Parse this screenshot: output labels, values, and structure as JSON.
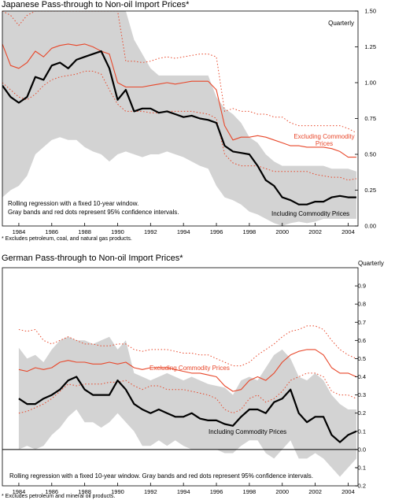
{
  "chart_data": [
    {
      "type": "line",
      "title": "Japanese Pass-through to Non-oil Import Prices*",
      "footnote": "* Excludes petroleum, coal, and natural gas products.",
      "frequency_label": "Quarterly",
      "note_lines": [
        "Rolling regression with a fixed 10-year window.",
        "Gray bands and red dots represent 95% confidence intervals."
      ],
      "xlim": [
        1983,
        2004.6
      ],
      "x_ticks": [
        1984,
        1986,
        1988,
        1990,
        1992,
        1994,
        1996,
        1998,
        2000,
        2002,
        2004
      ],
      "ylim": [
        0,
        1.5
      ],
      "y_ticks": [
        "0.00",
        "0.25",
        "0.50",
        "0.75",
        "1.00",
        "1.25",
        "1.50"
      ],
      "bands": {
        "x": [
          1983.0,
          1983.5,
          1984.0,
          1984.5,
          1985.0,
          1985.5,
          1986.0,
          1986.5,
          1987.0,
          1987.5,
          1988.0,
          1988.5,
          1989.0,
          1989.5,
          1990.0,
          1990.5,
          1991.0,
          1991.5,
          1992.0,
          1992.5,
          1993.0,
          1993.5,
          1994.0,
          1994.5,
          1995.0,
          1995.5,
          1996.0,
          1996.5,
          1997.0,
          1997.5,
          1998.0,
          1998.5,
          1999.0,
          1999.5,
          2000.0,
          2000.5,
          2001.0,
          2001.5,
          2002.0,
          2002.5,
          2003.0,
          2003.5,
          2004.0,
          2004.5
        ],
        "lower": [
          0.2,
          0.25,
          0.28,
          0.35,
          0.5,
          0.55,
          0.6,
          0.62,
          0.6,
          0.6,
          0.55,
          0.52,
          0.5,
          0.45,
          0.5,
          0.52,
          0.5,
          0.48,
          0.5,
          0.5,
          0.52,
          0.5,
          0.48,
          0.45,
          0.42,
          0.4,
          0.28,
          0.2,
          0.18,
          0.15,
          0.1,
          0.08,
          0.05,
          0.02,
          0.0,
          0.02,
          0.03,
          0.02,
          0.03,
          0.05,
          0.05,
          0.05,
          0.05,
          0.05
        ],
        "upper": [
          1.5,
          1.5,
          1.5,
          1.5,
          1.5,
          1.5,
          1.5,
          1.5,
          1.5,
          1.5,
          1.5,
          1.5,
          1.5,
          1.5,
          1.5,
          1.5,
          1.3,
          1.2,
          1.1,
          1.05,
          1.05,
          1.05,
          1.05,
          1.05,
          1.05,
          1.05,
          0.9,
          0.82,
          0.78,
          0.72,
          0.62,
          0.58,
          0.5,
          0.45,
          0.42,
          0.42,
          0.42,
          0.42,
          0.42,
          0.42,
          0.4,
          0.4,
          0.4,
          0.38
        ]
      },
      "series": [
        {
          "name": "Excluding Commodity Prices",
          "color": "#e8472a",
          "x": [
            1983.0,
            1983.5,
            1984.0,
            1984.5,
            1985.0,
            1985.5,
            1986.0,
            1986.5,
            1987.0,
            1987.5,
            1988.0,
            1988.5,
            1989.0,
            1989.5,
            1990.0,
            1990.5,
            1991.0,
            1991.5,
            1992.0,
            1992.5,
            1993.0,
            1993.5,
            1994.0,
            1994.5,
            1995.0,
            1995.5,
            1996.0,
            1996.5,
            1997.0,
            1997.5,
            1998.0,
            1998.5,
            1999.0,
            1999.5,
            2000.0,
            2000.5,
            2001.0,
            2001.5,
            2002.0,
            2002.5,
            2003.0,
            2003.5,
            2004.0,
            2004.5
          ],
          "y": [
            1.27,
            1.12,
            1.1,
            1.14,
            1.22,
            1.18,
            1.24,
            1.26,
            1.27,
            1.26,
            1.27,
            1.25,
            1.22,
            1.2,
            1.0,
            0.97,
            0.97,
            0.97,
            0.98,
            0.99,
            1.0,
            0.99,
            1.0,
            1.01,
            1.01,
            1.01,
            0.95,
            0.7,
            0.6,
            0.62,
            0.62,
            0.63,
            0.62,
            0.6,
            0.58,
            0.56,
            0.56,
            0.55,
            0.55,
            0.55,
            0.54,
            0.52,
            0.48,
            0.48
          ]
        },
        {
          "name": "Including Commodity Prices",
          "color": "#000000",
          "x": [
            1983.0,
            1983.5,
            1984.0,
            1984.5,
            1985.0,
            1985.5,
            1986.0,
            1986.5,
            1987.0,
            1987.5,
            1988.0,
            1988.5,
            1989.0,
            1989.5,
            1990.0,
            1990.5,
            1991.0,
            1991.5,
            1992.0,
            1992.5,
            1993.0,
            1993.5,
            1994.0,
            1994.5,
            1995.0,
            1995.5,
            1996.0,
            1996.5,
            1997.0,
            1997.5,
            1998.0,
            1998.5,
            1999.0,
            1999.5,
            2000.0,
            2000.5,
            2001.0,
            2001.5,
            2002.0,
            2002.5,
            2003.0,
            2003.5,
            2004.0,
            2004.5
          ],
          "y": [
            0.98,
            0.9,
            0.86,
            0.9,
            1.04,
            1.02,
            1.12,
            1.14,
            1.1,
            1.16,
            1.18,
            1.2,
            1.22,
            1.1,
            0.88,
            0.95,
            0.8,
            0.82,
            0.82,
            0.79,
            0.8,
            0.78,
            0.76,
            0.77,
            0.75,
            0.74,
            0.72,
            0.56,
            0.52,
            0.51,
            0.5,
            0.42,
            0.32,
            0.28,
            0.2,
            0.18,
            0.15,
            0.15,
            0.17,
            0.17,
            0.2,
            0.21,
            0.2,
            0.2
          ]
        }
      ],
      "upper_ci": [
        1.5,
        1.47,
        1.4,
        1.47,
        1.5,
        1.5,
        1.5,
        1.5,
        1.5,
        1.5,
        1.5,
        1.5,
        1.5,
        1.5,
        1.5,
        1.15,
        1.15,
        1.14,
        1.15,
        1.17,
        1.18,
        1.17,
        1.18,
        1.19,
        1.2,
        1.2,
        1.18,
        0.8,
        0.82,
        0.8,
        0.8,
        0.78,
        0.78,
        0.76,
        0.76,
        0.72,
        0.7,
        0.7,
        0.7,
        0.7,
        0.7,
        0.7,
        0.68,
        0.65
      ],
      "lower_ci": [
        1.0,
        0.95,
        0.9,
        0.88,
        0.92,
        0.98,
        1.02,
        1.04,
        1.05,
        1.06,
        1.08,
        1.08,
        1.06,
        0.95,
        0.85,
        0.8,
        0.8,
        0.8,
        0.79,
        0.79,
        0.8,
        0.8,
        0.8,
        0.8,
        0.79,
        0.78,
        0.75,
        0.5,
        0.44,
        0.42,
        0.42,
        0.42,
        0.4,
        0.38,
        0.38,
        0.38,
        0.38,
        0.38,
        0.36,
        0.35,
        0.34,
        0.34,
        0.32,
        0.33
      ],
      "labels": {
        "excluding_line1": "Excluding Commodity",
        "excluding_line2": "Prices",
        "including": "Including Commodity Prices"
      }
    },
    {
      "type": "line",
      "title": "German Pass-through to Non-oil Import Prices*",
      "footnote": "* Excludes petroleum and mineral oil products.",
      "frequency_label": "Quarterly",
      "note_lines": [
        "Rolling regression with a fixed 10-year window. Gray bands and red dots represent 95% confidence intervals."
      ],
      "xlim": [
        1983,
        2004.6
      ],
      "x_ticks": [
        1984,
        1986,
        1988,
        1990,
        1992,
        1994,
        1996,
        1998,
        2000,
        2002,
        2004
      ],
      "ylim": [
        -0.2,
        1.0
      ],
      "y_ticks": [
        "-0.2",
        "-0.1",
        "0.0",
        "0.1",
        "0.2",
        "0.3",
        "0.4",
        "0.5",
        "0.6",
        "0.7",
        "0.8",
        "0.9"
      ],
      "bands": {
        "x": [
          1984.0,
          1984.5,
          1985.0,
          1985.5,
          1986.0,
          1986.5,
          1987.0,
          1987.5,
          1988.0,
          1988.5,
          1989.0,
          1989.5,
          1990.0,
          1990.5,
          1991.0,
          1991.5,
          1992.0,
          1992.5,
          1993.0,
          1993.5,
          1994.0,
          1994.5,
          1995.0,
          1995.5,
          1996.0,
          1996.5,
          1997.0,
          1997.5,
          1998.0,
          1998.5,
          1999.0,
          1999.5,
          2000.0,
          2000.5,
          2001.0,
          2001.5,
          2002.0,
          2002.5,
          2003.0,
          2003.5,
          2004.0,
          2004.5
        ],
        "lower": [
          0.0,
          0.02,
          0.0,
          0.02,
          0.08,
          0.12,
          0.18,
          0.22,
          0.15,
          0.15,
          0.12,
          0.15,
          0.2,
          0.15,
          0.1,
          0.02,
          0.02,
          0.05,
          0.02,
          0.05,
          0.02,
          0.0,
          0.0,
          0.0,
          0.0,
          -0.02,
          -0.02,
          0.02,
          0.05,
          0.05,
          -0.02,
          -0.05,
          0.0,
          0.05,
          -0.05,
          -0.05,
          -0.02,
          -0.05,
          -0.1,
          -0.15,
          -0.1,
          -0.05
        ],
        "upper": [
          0.56,
          0.5,
          0.52,
          0.48,
          0.55,
          0.6,
          0.62,
          0.6,
          0.6,
          0.58,
          0.6,
          0.62,
          0.55,
          0.6,
          0.42,
          0.4,
          0.38,
          0.4,
          0.42,
          0.4,
          0.38,
          0.4,
          0.38,
          0.36,
          0.35,
          0.34,
          0.3,
          0.38,
          0.4,
          0.38,
          0.45,
          0.52,
          0.55,
          0.5,
          0.4,
          0.38,
          0.42,
          0.38,
          0.3,
          0.25,
          0.22,
          0.22
        ]
      },
      "series": [
        {
          "name": "Excluding Commodity Prices",
          "color": "#e8472a",
          "x": [
            1984.0,
            1984.5,
            1985.0,
            1985.5,
            1986.0,
            1986.5,
            1987.0,
            1987.5,
            1988.0,
            1988.5,
            1989.0,
            1989.5,
            1990.0,
            1990.5,
            1991.0,
            1991.5,
            1992.0,
            1992.5,
            1993.0,
            1993.5,
            1994.0,
            1994.5,
            1995.0,
            1995.5,
            1996.0,
            1996.5,
            1997.0,
            1997.5,
            1998.0,
            1998.5,
            1999.0,
            1999.5,
            2000.0,
            2000.5,
            2001.0,
            2001.5,
            2002.0,
            2002.5,
            2003.0,
            2003.5,
            2004.0,
            2004.5
          ],
          "y": [
            0.44,
            0.43,
            0.45,
            0.44,
            0.45,
            0.48,
            0.49,
            0.48,
            0.48,
            0.47,
            0.47,
            0.48,
            0.47,
            0.48,
            0.45,
            0.44,
            0.45,
            0.45,
            0.45,
            0.44,
            0.43,
            0.42,
            0.42,
            0.41,
            0.4,
            0.35,
            0.32,
            0.33,
            0.38,
            0.4,
            0.38,
            0.42,
            0.48,
            0.52,
            0.54,
            0.55,
            0.55,
            0.52,
            0.45,
            0.42,
            0.42,
            0.4
          ]
        },
        {
          "name": "Including Commodity Prices",
          "color": "#000000",
          "x": [
            1984.0,
            1984.5,
            1985.0,
            1985.5,
            1986.0,
            1986.5,
            1987.0,
            1987.5,
            1988.0,
            1988.5,
            1989.0,
            1989.5,
            1990.0,
            1990.5,
            1991.0,
            1991.5,
            1992.0,
            1992.5,
            1993.0,
            1993.5,
            1994.0,
            1994.5,
            1995.0,
            1995.5,
            1996.0,
            1996.5,
            1997.0,
            1997.5,
            1998.0,
            1998.5,
            1999.0,
            1999.5,
            2000.0,
            2000.5,
            2001.0,
            2001.5,
            2002.0,
            2002.5,
            2003.0,
            2003.5,
            2004.0,
            2004.5
          ],
          "y": [
            0.28,
            0.25,
            0.25,
            0.28,
            0.3,
            0.33,
            0.38,
            0.4,
            0.33,
            0.3,
            0.3,
            0.3,
            0.38,
            0.33,
            0.25,
            0.22,
            0.2,
            0.22,
            0.2,
            0.18,
            0.18,
            0.2,
            0.17,
            0.16,
            0.16,
            0.14,
            0.13,
            0.18,
            0.22,
            0.22,
            0.2,
            0.26,
            0.28,
            0.33,
            0.2,
            0.15,
            0.18,
            0.18,
            0.08,
            0.04,
            0.08,
            0.1
          ]
        }
      ],
      "upper_ci": [
        0.66,
        0.65,
        0.66,
        0.6,
        0.58,
        0.6,
        0.62,
        0.6,
        0.58,
        0.58,
        0.57,
        0.57,
        0.58,
        0.58,
        0.55,
        0.54,
        0.55,
        0.55,
        0.55,
        0.54,
        0.53,
        0.53,
        0.52,
        0.52,
        0.5,
        0.48,
        0.46,
        0.46,
        0.48,
        0.52,
        0.55,
        0.58,
        0.62,
        0.65,
        0.66,
        0.68,
        0.68,
        0.66,
        0.6,
        0.55,
        0.52,
        0.5
      ],
      "lower_ci": [
        0.2,
        0.21,
        0.23,
        0.25,
        0.28,
        0.32,
        0.36,
        0.35,
        0.36,
        0.36,
        0.36,
        0.37,
        0.37,
        0.38,
        0.35,
        0.33,
        0.35,
        0.35,
        0.33,
        0.33,
        0.33,
        0.32,
        0.31,
        0.3,
        0.28,
        0.22,
        0.2,
        0.22,
        0.28,
        0.3,
        0.26,
        0.28,
        0.32,
        0.38,
        0.4,
        0.42,
        0.42,
        0.4,
        0.32,
        0.3,
        0.3,
        0.28
      ],
      "labels": {
        "excluding": "Excluding Commodity Prices",
        "including": "Including Commodity Prices"
      }
    }
  ]
}
